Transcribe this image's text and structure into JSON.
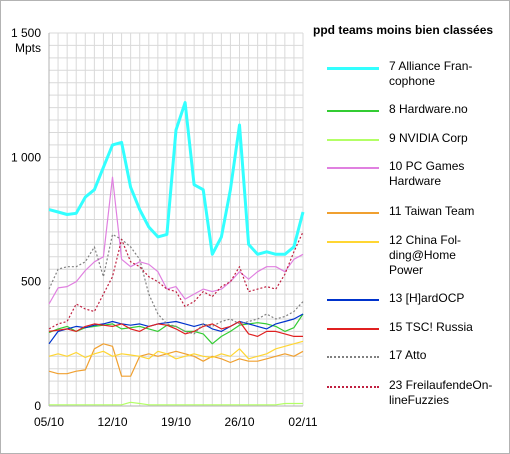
{
  "chart_data": {
    "type": "line",
    "title": "ppd teams moins bien classées",
    "ylabel": "Mpts",
    "ylim": [
      0,
      1500
    ],
    "yticks": [
      0,
      500,
      1000,
      1500
    ],
    "ytick_labels": [
      "0",
      "500",
      "1 000",
      "1 500"
    ],
    "x_start": "05/10",
    "x_count": 29,
    "xticks": [
      {
        "day": 0,
        "label": "05/10"
      },
      {
        "day": 7,
        "label": "12/10"
      },
      {
        "day": 14,
        "label": "19/10"
      },
      {
        "day": 21,
        "label": "26/10"
      },
      {
        "day": 28,
        "label": "02/11"
      }
    ],
    "grid": true,
    "legend_position": "right",
    "series": [
      {
        "name": "7 Alliance Fran-\ncophone",
        "color": "#33ffff",
        "width": 3,
        "dash": "",
        "values": [
          790,
          780,
          770,
          775,
          840,
          870,
          960,
          1050,
          1060,
          880,
          790,
          720,
          680,
          690,
          1110,
          1220,
          890,
          870,
          610,
          680,
          870,
          1130,
          650,
          610,
          620,
          610,
          610,
          640,
          780
        ]
      },
      {
        "name": "8 Hardware.no",
        "color": "#33cc33",
        "width": 1.2,
        "dash": "",
        "values": [
          295,
          310,
          320,
          300,
          315,
          320,
          325,
          330,
          310,
          315,
          320,
          310,
          300,
          325,
          320,
          300,
          300,
          290,
          250,
          280,
          300,
          325,
          330,
          335,
          330,
          320,
          300,
          315,
          370
        ]
      },
      {
        "name": "9 NVIDIA Corp",
        "color": "#b3ff66",
        "width": 1.2,
        "dash": "",
        "values": [
          5,
          5,
          5,
          5,
          5,
          5,
          5,
          5,
          5,
          15,
          10,
          5,
          5,
          5,
          5,
          5,
          5,
          5,
          5,
          5,
          5,
          5,
          5,
          5,
          5,
          5,
          10,
          10,
          10
        ]
      },
      {
        "name": "10 PC Games\nHardware",
        "color": "#e080e0",
        "width": 1.2,
        "dash": "",
        "values": [
          410,
          475,
          480,
          500,
          545,
          580,
          600,
          920,
          590,
          560,
          580,
          570,
          540,
          470,
          480,
          430,
          450,
          470,
          460,
          470,
          500,
          540,
          510,
          540,
          560,
          560,
          540,
          590,
          610
        ]
      },
      {
        "name": "11 Taiwan Team",
        "color": "#f0a030",
        "width": 1.2,
        "dash": "",
        "values": [
          140,
          130,
          130,
          140,
          145,
          230,
          250,
          240,
          120,
          120,
          200,
          210,
          200,
          210,
          220,
          210,
          200,
          180,
          200,
          190,
          175,
          190,
          180,
          180,
          190,
          200,
          210,
          200,
          220
        ]
      },
      {
        "name": "12 China Fol-\nding@Home\nPower",
        "color": "#ffd633",
        "width": 1.2,
        "dash": "",
        "values": [
          200,
          210,
          200,
          215,
          195,
          210,
          220,
          200,
          210,
          205,
          200,
          190,
          220,
          210,
          190,
          200,
          210,
          200,
          195,
          210,
          200,
          230,
          190,
          200,
          210,
          230,
          240,
          250,
          260
        ]
      },
      {
        "name": "13 [H]ardOCP",
        "color": "#0033cc",
        "width": 1.2,
        "dash": "",
        "values": [
          250,
          300,
          310,
          320,
          315,
          325,
          330,
          340,
          330,
          325,
          330,
          320,
          330,
          335,
          340,
          330,
          320,
          330,
          310,
          300,
          320,
          340,
          330,
          320,
          310,
          330,
          340,
          350,
          370
        ]
      },
      {
        "name": "15 TSC! Russia",
        "color": "#e02020",
        "width": 1.2,
        "dash": "",
        "values": [
          300,
          305,
          310,
          300,
          320,
          330,
          325,
          320,
          330,
          310,
          300,
          320,
          330,
          325,
          310,
          290,
          300,
          320,
          330,
          310,
          320,
          340,
          290,
          280,
          300,
          300,
          290,
          280,
          280
        ]
      },
      {
        "name": "17 Atto",
        "color": "#808080",
        "width": 1.2,
        "dash": "2,2",
        "values": [
          470,
          550,
          560,
          560,
          580,
          640,
          520,
          690,
          670,
          640,
          590,
          450,
          370,
          330,
          320,
          300,
          290,
          330,
          320,
          340,
          350,
          330,
          340,
          350,
          370,
          350,
          360,
          380,
          420
        ]
      },
      {
        "name": "23 FreilaufendeOn-\nlineFuzzies",
        "color": "#c02040",
        "width": 1.2,
        "dash": "2,2",
        "values": [
          310,
          330,
          340,
          410,
          390,
          380,
          450,
          520,
          670,
          580,
          560,
          520,
          500,
          470,
          460,
          400,
          420,
          460,
          440,
          480,
          500,
          560,
          460,
          470,
          480,
          470,
          530,
          620,
          700
        ]
      }
    ]
  }
}
